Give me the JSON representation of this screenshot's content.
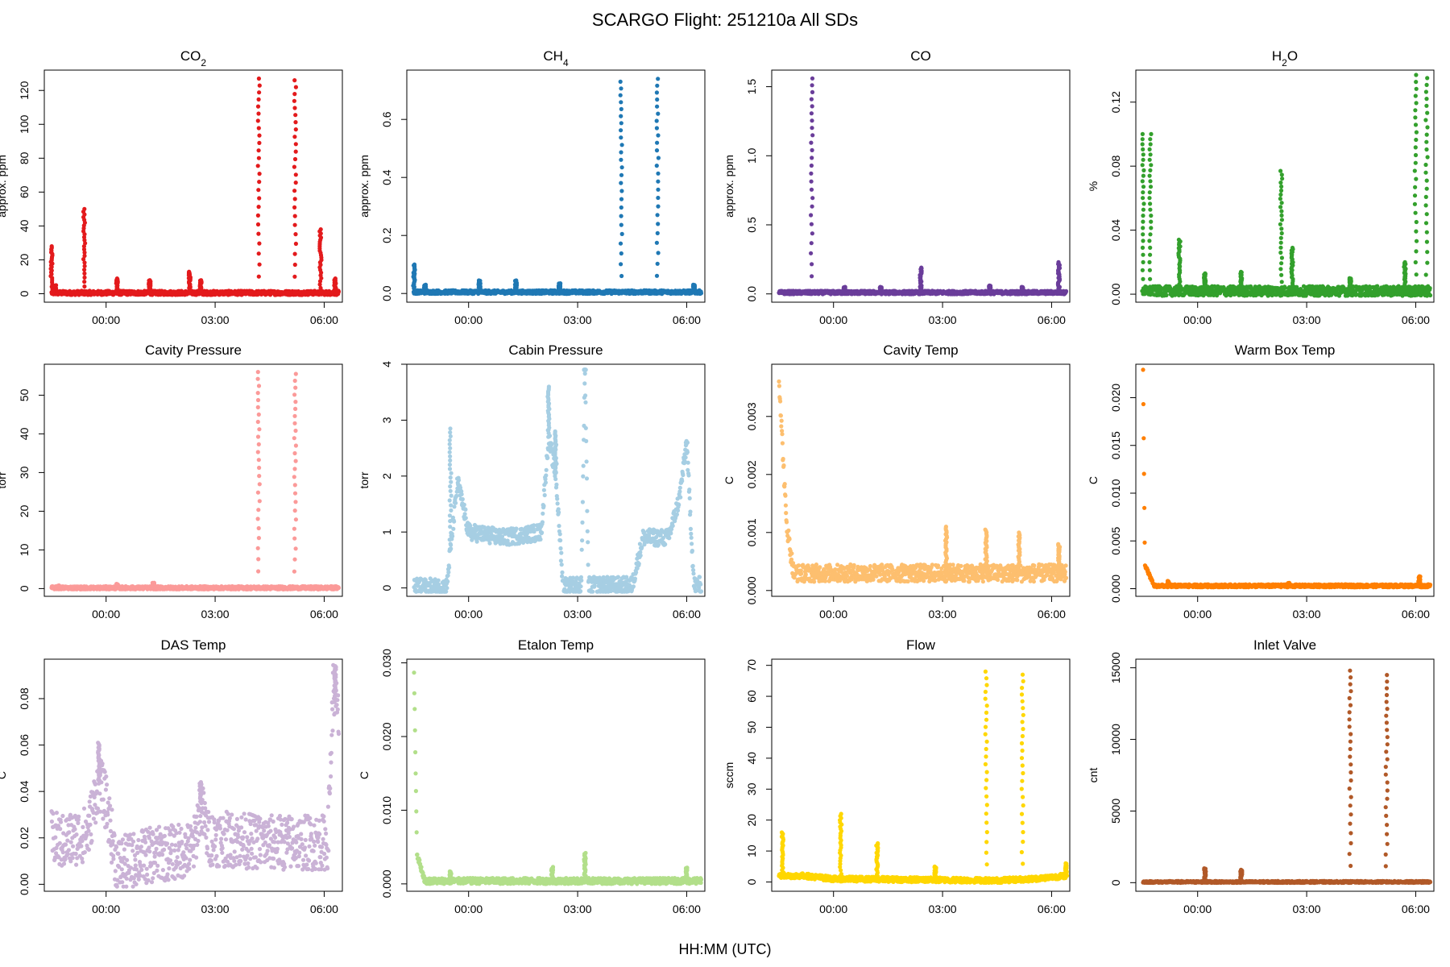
{
  "figure": {
    "title": "SCARGO Flight: 251210a  All SDs",
    "xlabel": "HH:MM (UTC)"
  },
  "chart_data": [
    {
      "type": "scatter",
      "name": "co2",
      "title": "CO",
      "title_sub": "2",
      "ylabel": "approx. ppm",
      "color": "#E31A1C",
      "x_ticks": [
        "00:00",
        "03:00",
        "06:00"
      ],
      "x_tick_values": [
        0,
        3,
        6
      ],
      "xlim": [
        -1.7,
        6.5
      ],
      "y_ticks": [
        "0",
        "20",
        "40",
        "60",
        "80",
        "100",
        "120"
      ],
      "y_tick_values": [
        0,
        20,
        40,
        60,
        80,
        100,
        120
      ],
      "ylim": [
        -5,
        132
      ],
      "baseline": [
        [
          -1.5,
          0.5
        ],
        [
          -1.2,
          0.5
        ],
        [
          -0.7,
          0.5
        ],
        [
          0.5,
          0.5
        ],
        [
          2,
          0.5
        ],
        [
          4,
          0.5
        ],
        [
          6.4,
          0.5
        ]
      ],
      "noise": 1.2,
      "spikes": [
        {
          "x": -1.5,
          "y": 28
        },
        {
          "x": -1.4,
          "y": 5
        },
        {
          "x": -0.6,
          "y": 50
        },
        {
          "x": 0.3,
          "y": 9
        },
        {
          "x": 1.2,
          "y": 8
        },
        {
          "x": 2.3,
          "y": 13
        },
        {
          "x": 2.6,
          "y": 8
        },
        {
          "x": 4.2,
          "y": 127
        },
        {
          "x": 5.2,
          "y": 126
        },
        {
          "x": 5.9,
          "y": 38
        },
        {
          "x": 6.3,
          "y": 9
        }
      ]
    },
    {
      "type": "scatter",
      "name": "ch4",
      "title": "CH",
      "title_sub": "4",
      "ylabel": "approx. ppm",
      "color": "#1F78B4",
      "x_ticks": [
        "00:00",
        "03:00",
        "06:00"
      ],
      "x_tick_values": [
        0,
        3,
        6
      ],
      "xlim": [
        -1.7,
        6.5
      ],
      "y_ticks": [
        "0.0",
        "0.2",
        "0.4",
        "0.6"
      ],
      "y_tick_values": [
        0,
        0.2,
        0.4,
        0.6
      ],
      "ylim": [
        -0.03,
        0.77
      ],
      "baseline": [
        [
          -1.5,
          0.005
        ],
        [
          6.4,
          0.005
        ]
      ],
      "noise": 0.006,
      "spikes": [
        {
          "x": -1.5,
          "y": 0.1
        },
        {
          "x": -1.2,
          "y": 0.03
        },
        {
          "x": 0.3,
          "y": 0.045
        },
        {
          "x": 1.3,
          "y": 0.045
        },
        {
          "x": 2.5,
          "y": 0.035
        },
        {
          "x": 4.2,
          "y": 0.73
        },
        {
          "x": 5.2,
          "y": 0.74
        },
        {
          "x": 6.2,
          "y": 0.03
        }
      ]
    },
    {
      "type": "scatter",
      "name": "co",
      "title": "CO",
      "title_sub": "",
      "ylabel": "approx. ppm",
      "color": "#6A3D9A",
      "x_ticks": [
        "00:00",
        "03:00",
        "06:00"
      ],
      "x_tick_values": [
        0,
        3,
        6
      ],
      "xlim": [
        -1.7,
        6.5
      ],
      "y_ticks": [
        "0.0",
        "0.5",
        "1.0",
        "1.5"
      ],
      "y_tick_values": [
        0,
        0.5,
        1,
        1.5
      ],
      "ylim": [
        -0.06,
        1.62
      ],
      "baseline": [
        [
          -1.5,
          0.01
        ],
        [
          6.4,
          0.01
        ]
      ],
      "noise": 0.012,
      "spikes": [
        {
          "x": -0.6,
          "y": 1.56
        },
        {
          "x": 0.3,
          "y": 0.05
        },
        {
          "x": 1.3,
          "y": 0.05
        },
        {
          "x": 2.4,
          "y": 0.19
        },
        {
          "x": 4.3,
          "y": 0.06
        },
        {
          "x": 5.2,
          "y": 0.05
        },
        {
          "x": 6.2,
          "y": 0.23
        }
      ]
    },
    {
      "type": "scatter",
      "name": "h2o",
      "title": "H",
      "title_sub": "2",
      "title_suffix": "O",
      "ylabel": "%",
      "color": "#33A02C",
      "x_ticks": [
        "00:00",
        "03:00",
        "06:00"
      ],
      "x_tick_values": [
        0,
        3,
        6
      ],
      "xlim": [
        -1.7,
        6.5
      ],
      "y_ticks": [
        "0.00",
        "0.04",
        "0.08",
        "0.12"
      ],
      "y_tick_values": [
        0,
        0.04,
        0.08,
        0.12
      ],
      "ylim": [
        -0.005,
        0.14
      ],
      "baseline": [
        [
          -1.5,
          0.002
        ],
        [
          6.4,
          0.002
        ]
      ],
      "noise": 0.003,
      "spikes": [
        {
          "x": -1.5,
          "y": 0.1
        },
        {
          "x": -1.3,
          "y": 0.1
        },
        {
          "x": -0.5,
          "y": 0.034
        },
        {
          "x": 0.2,
          "y": 0.013
        },
        {
          "x": 1.2,
          "y": 0.014
        },
        {
          "x": 2.3,
          "y": 0.077
        },
        {
          "x": 2.6,
          "y": 0.029
        },
        {
          "x": 4.2,
          "y": 0.01
        },
        {
          "x": 5.7,
          "y": 0.02
        },
        {
          "x": 6.0,
          "y": 0.137
        },
        {
          "x": 6.3,
          "y": 0.135
        }
      ]
    },
    {
      "type": "scatter",
      "name": "cavity-pressure",
      "title": "Cavity Pressure",
      "title_sub": "",
      "ylabel": "torr",
      "color": "#FB9A99",
      "x_ticks": [
        "00:00",
        "03:00",
        "06:00"
      ],
      "x_tick_values": [
        0,
        3,
        6
      ],
      "xlim": [
        -1.7,
        6.5
      ],
      "y_ticks": [
        "0",
        "10",
        "20",
        "30",
        "40",
        "50"
      ],
      "y_tick_values": [
        0,
        10,
        20,
        30,
        40,
        50
      ],
      "ylim": [
        -2,
        58
      ],
      "baseline": [
        [
          -1.5,
          0.2
        ],
        [
          6.4,
          0.2
        ]
      ],
      "noise": 0.4,
      "spikes": [
        {
          "x": -1.3,
          "y": 0.8
        },
        {
          "x": 0.3,
          "y": 1.2
        },
        {
          "x": 1.3,
          "y": 1.5
        },
        {
          "x": 4.2,
          "y": 56
        },
        {
          "x": 5.2,
          "y": 55.5
        }
      ]
    },
    {
      "type": "scatter",
      "name": "cabin-pressure",
      "title": "Cabin Pressure",
      "title_sub": "",
      "ylabel": "torr",
      "color": "#A6CEE3",
      "x_ticks": [
        "00:00",
        "03:00",
        "06:00"
      ],
      "x_tick_values": [
        0,
        3,
        6
      ],
      "xlim": [
        -1.7,
        6.5
      ],
      "y_ticks": [
        "0",
        "1",
        "2",
        "3",
        "4"
      ],
      "y_tick_values": [
        0,
        1,
        2,
        3,
        4
      ],
      "ylim": [
        -0.15,
        4
      ],
      "baseline": [
        [
          -1.5,
          0.02
        ],
        [
          -0.6,
          0.02
        ],
        [
          -0.5,
          0.7
        ],
        [
          -0.3,
          1.9
        ],
        [
          0,
          1.0
        ],
        [
          1,
          0.9
        ],
        [
          2,
          1.0
        ],
        [
          2.2,
          2.7
        ],
        [
          2.4,
          2.0
        ],
        [
          2.6,
          0.05
        ],
        [
          3.1,
          0.05
        ],
        [
          3.2,
          3.9
        ],
        [
          3.3,
          0.05
        ],
        [
          4.5,
          0.05
        ],
        [
          4.8,
          0.9
        ],
        [
          5.5,
          0.9
        ],
        [
          5.8,
          1.6
        ],
        [
          6.0,
          2.6
        ],
        [
          6.2,
          0.05
        ],
        [
          6.4,
          0.05
        ]
      ],
      "noise": 0.15,
      "spikes": [
        {
          "x": -0.5,
          "y": 2.85
        },
        {
          "x": 2.2,
          "y": 3.6
        },
        {
          "x": 2.4,
          "y": 2.8
        },
        {
          "x": 3.2,
          "y": 3.9
        },
        {
          "x": 6.0,
          "y": 2.6
        }
      ]
    },
    {
      "type": "scatter",
      "name": "cavity-temp",
      "title": "Cavity Temp",
      "title_sub": "",
      "ylabel": "C",
      "color": "#FDBF6F",
      "x_ticks": [
        "00:00",
        "03:00",
        "06:00"
      ],
      "x_tick_values": [
        0,
        3,
        6
      ],
      "xlim": [
        -1.7,
        6.5
      ],
      "y_ticks": [
        "0.000",
        "0.001",
        "0.002",
        "0.003"
      ],
      "y_tick_values": [
        0,
        0.001,
        0.002,
        0.003
      ],
      "ylim": [
        -0.0001,
        0.0039
      ],
      "baseline": [
        [
          -1.5,
          0.0037
        ],
        [
          -1.3,
          0.0012
        ],
        [
          -1.1,
          0.0003
        ],
        [
          6.4,
          0.0003
        ]
      ],
      "noise": 0.00015,
      "spikes": [
        {
          "x": 3.1,
          "y": 0.0011
        },
        {
          "x": 4.2,
          "y": 0.00105
        },
        {
          "x": 5.1,
          "y": 0.001
        },
        {
          "x": 6.2,
          "y": 0.0008
        }
      ]
    },
    {
      "type": "scatter",
      "name": "warm-box-temp",
      "title": "Warm Box Temp",
      "title_sub": "",
      "ylabel": "C",
      "color": "#FF7F00",
      "x_ticks": [
        "00:00",
        "03:00",
        "06:00"
      ],
      "x_tick_values": [
        0,
        3,
        6
      ],
      "xlim": [
        -1.7,
        6.5
      ],
      "y_ticks": [
        "0.000",
        "0.005",
        "0.010",
        "0.015",
        "0.020"
      ],
      "y_tick_values": [
        0,
        0.005,
        0.01,
        0.015,
        0.02
      ],
      "ylim": [
        -0.0008,
        0.0235
      ],
      "baseline": [
        [
          -1.5,
          0.0228
        ],
        [
          -1.45,
          0.0025
        ],
        [
          -1.2,
          0.0003
        ],
        [
          6.4,
          0.0003
        ]
      ],
      "noise": 0.00015,
      "spikes": [
        {
          "x": -0.8,
          "y": 0.0008
        },
        {
          "x": 2.5,
          "y": 0.0006
        },
        {
          "x": 6.1,
          "y": 0.0013
        }
      ]
    },
    {
      "type": "scatter",
      "name": "das-temp",
      "title": "DAS Temp",
      "title_sub": "",
      "ylabel": "C",
      "color": "#CAB2D6",
      "x_ticks": [
        "00:00",
        "03:00",
        "06:00"
      ],
      "x_tick_values": [
        0,
        3,
        6
      ],
      "xlim": [
        -1.7,
        6.5
      ],
      "y_ticks": [
        "0.00",
        "0.02",
        "0.04",
        "0.06",
        "0.08"
      ],
      "y_tick_values": [
        0,
        0.02,
        0.04,
        0.06,
        0.08
      ],
      "ylim": [
        -0.003,
        0.097
      ],
      "baseline": [
        [
          -1.5,
          0.02
        ],
        [
          -1.2,
          0.018
        ],
        [
          -0.5,
          0.022
        ],
        [
          -0.2,
          0.045
        ],
        [
          0,
          0.035
        ],
        [
          0.3,
          0.008
        ],
        [
          1,
          0.012
        ],
        [
          2.4,
          0.015
        ],
        [
          2.6,
          0.035
        ],
        [
          2.8,
          0.02
        ],
        [
          4.5,
          0.018
        ],
        [
          6.1,
          0.018
        ],
        [
          6.25,
          0.085
        ],
        [
          6.4,
          0.07
        ]
      ],
      "noise": 0.012,
      "spikes": [
        {
          "x": -0.2,
          "y": 0.061
        },
        {
          "x": 2.6,
          "y": 0.044
        },
        {
          "x": 6.3,
          "y": 0.094
        }
      ]
    },
    {
      "type": "scatter",
      "name": "etalon-temp",
      "title": "Etalon Temp",
      "title_sub": "",
      "ylabel": "C",
      "color": "#B2DF8A",
      "x_ticks": [
        "00:00",
        "03:00",
        "06:00"
      ],
      "x_tick_values": [
        0,
        3,
        6
      ],
      "xlim": [
        -1.7,
        6.5
      ],
      "y_ticks": [
        "0.000",
        "0.010",
        "0.020",
        "0.030"
      ],
      "y_tick_values": [
        0,
        0.01,
        0.02,
        0.03
      ],
      "ylim": [
        -0.001,
        0.0305
      ],
      "baseline": [
        [
          -1.5,
          0.029
        ],
        [
          -1.42,
          0.004
        ],
        [
          -1.2,
          0.0004
        ],
        [
          6.4,
          0.0004
        ]
      ],
      "noise": 0.0004,
      "spikes": [
        {
          "x": -0.5,
          "y": 0.0017
        },
        {
          "x": 2.3,
          "y": 0.0023
        },
        {
          "x": 3.2,
          "y": 0.0042
        },
        {
          "x": 6.0,
          "y": 0.0022
        }
      ]
    },
    {
      "type": "scatter",
      "name": "flow",
      "title": "Flow",
      "title_sub": "",
      "ylabel": "sccm",
      "color": "#FFD700",
      "x_ticks": [
        "00:00",
        "03:00",
        "06:00"
      ],
      "x_tick_values": [
        0,
        3,
        6
      ],
      "xlim": [
        -1.7,
        6.5
      ],
      "y_ticks": [
        "0",
        "10",
        "20",
        "30",
        "40",
        "50",
        "60",
        "70"
      ],
      "y_tick_values": [
        0,
        10,
        20,
        30,
        40,
        50,
        60,
        70
      ],
      "ylim": [
        -3,
        72
      ],
      "baseline": [
        [
          -1.5,
          2
        ],
        [
          -0.8,
          2
        ],
        [
          0,
          1
        ],
        [
          4.5,
          0.5
        ],
        [
          5.5,
          1
        ],
        [
          6.4,
          2
        ]
      ],
      "noise": 0.8,
      "spikes": [
        {
          "x": -1.4,
          "y": 16
        },
        {
          "x": 0.2,
          "y": 22
        },
        {
          "x": 1.2,
          "y": 12.5
        },
        {
          "x": 2.8,
          "y": 5
        },
        {
          "x": 4.2,
          "y": 68
        },
        {
          "x": 5.2,
          "y": 67
        },
        {
          "x": 6.4,
          "y": 6
        }
      ]
    },
    {
      "type": "scatter",
      "name": "inlet-valve",
      "title": "Inlet Valve",
      "title_sub": "",
      "ylabel": "cnt",
      "color": "#B15928",
      "x_ticks": [
        "00:00",
        "03:00",
        "06:00"
      ],
      "x_tick_values": [
        0,
        3,
        6
      ],
      "xlim": [
        -1.7,
        6.5
      ],
      "y_ticks": [
        "0",
        "5000",
        "10000",
        "15000"
      ],
      "y_tick_values": [
        0,
        5000,
        10000,
        15000
      ],
      "ylim": [
        -600,
        15600
      ],
      "baseline": [
        [
          -1.5,
          50
        ],
        [
          6.4,
          50
        ]
      ],
      "noise": 60,
      "spikes": [
        {
          "x": 0.2,
          "y": 1000
        },
        {
          "x": 1.2,
          "y": 900
        },
        {
          "x": 4.2,
          "y": 14800
        },
        {
          "x": 5.2,
          "y": 14500
        }
      ]
    }
  ]
}
